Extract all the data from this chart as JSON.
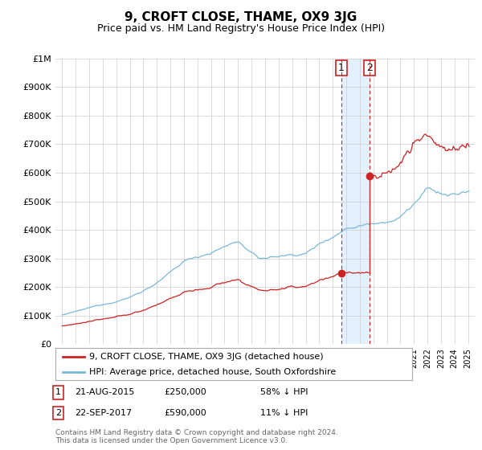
{
  "title": "9, CROFT CLOSE, THAME, OX9 3JG",
  "subtitle": "Price paid vs. HM Land Registry's House Price Index (HPI)",
  "hpi_label": "HPI: Average price, detached house, South Oxfordshire",
  "property_label": "9, CROFT CLOSE, THAME, OX9 3JG (detached house)",
  "footnote": "Contains HM Land Registry data © Crown copyright and database right 2024.\nThis data is licensed under the Open Government Licence v3.0.",
  "transaction1": {
    "label": "1",
    "date": "21-AUG-2015",
    "price": "£250,000",
    "pct": "58% ↓ HPI"
  },
  "transaction2": {
    "label": "2",
    "date": "22-SEP-2017",
    "price": "£590,000",
    "pct": "11% ↓ HPI"
  },
  "vline1_x": 2015.64,
  "vline2_x": 2017.72,
  "marker1_price_y": 250000,
  "marker2_price_y": 590000,
  "ylim": [
    0,
    1000000
  ],
  "xlim": [
    1994.5,
    2025.5
  ],
  "bg_color": "#ffffff",
  "hpi_color": "#7ab8d9",
  "property_color": "#cc2222",
  "vline_color": "#cc2222",
  "vspan_color": "#ddeeff",
  "grid_color": "#cccccc",
  "title_fontsize": 11,
  "subtitle_fontsize": 9
}
